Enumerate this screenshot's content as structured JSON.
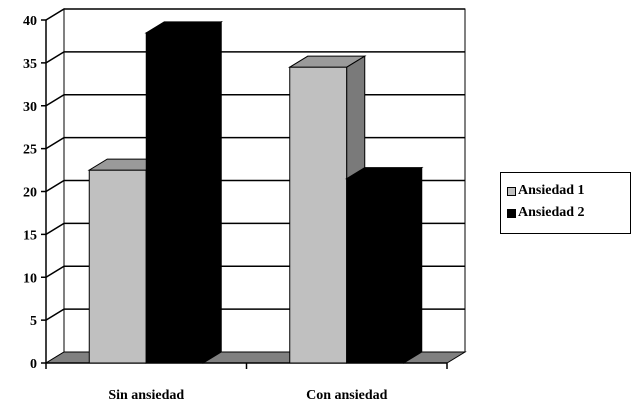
{
  "chart_data": {
    "type": "bar",
    "categories": [
      "Sin ansiedad",
      "Con ansiedad"
    ],
    "series": [
      {
        "name": "Ansiedad 1",
        "values": [
          22.5,
          34.5
        ],
        "color": "#c0c0c0"
      },
      {
        "name": "Ansiedad 2",
        "values": [
          38.5,
          21.5
        ],
        "color": "#000000"
      }
    ],
    "title": "",
    "xlabel": "",
    "ylabel": "",
    "ylim": [
      0,
      40
    ],
    "yticks": [
      "0",
      "5",
      "10",
      "15",
      "20",
      "25",
      "30",
      "35",
      "40"
    ],
    "grid": true,
    "three_d": true,
    "legend_position": "right"
  }
}
